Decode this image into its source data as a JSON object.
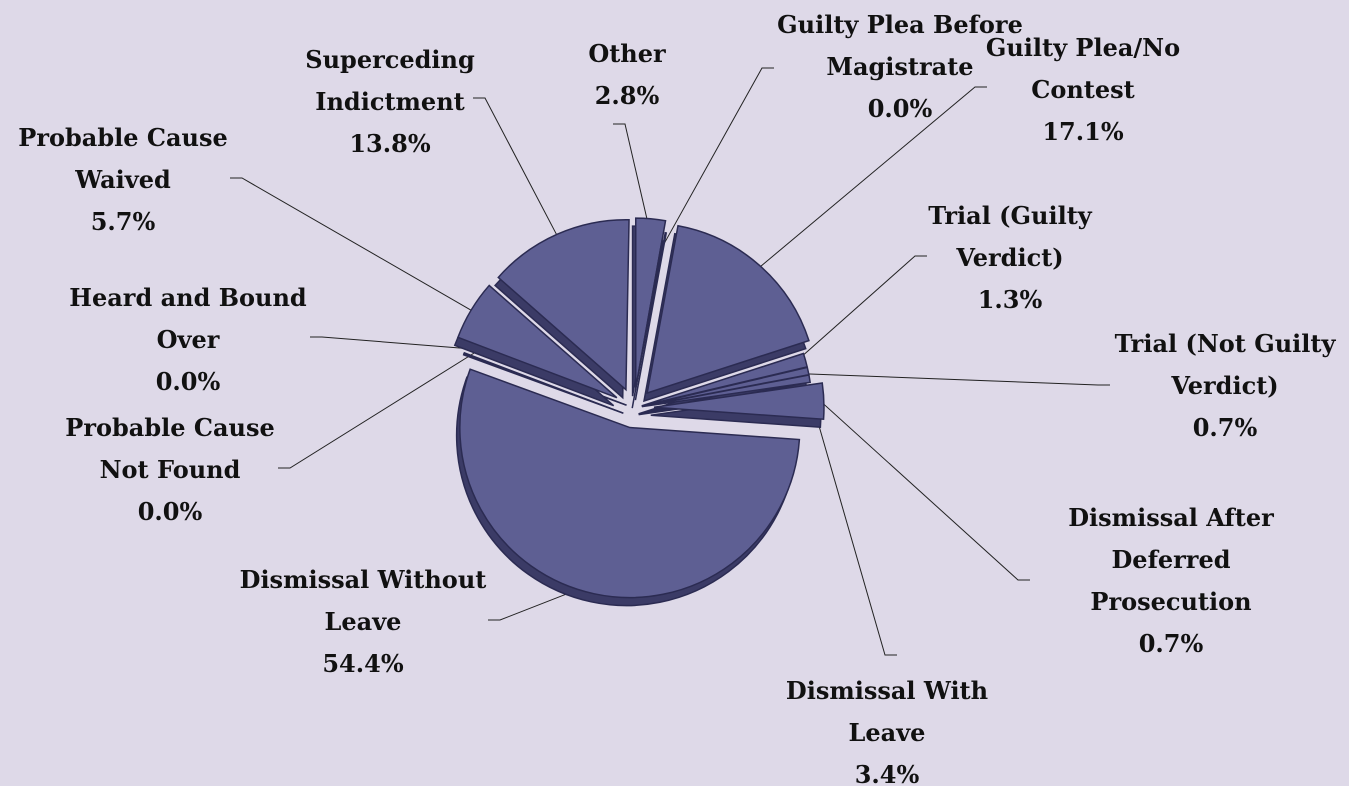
{
  "chart_data": {
    "type": "pie",
    "style": "3d-exploded",
    "colors": {
      "background": "#ded9e8",
      "slice": "#5e5f93",
      "slice_edge": "#2b2b52",
      "slice_side": "#3b3b66",
      "leader": "#222222"
    },
    "slices": [
      {
        "label_lines": [
          "Other"
        ],
        "value": 2.8,
        "value_label": "2.8%"
      },
      {
        "label_lines": [
          "Guilty Plea Before",
          "Magistrate"
        ],
        "value": 0.0,
        "value_label": "0.0%"
      },
      {
        "label_lines": [
          "Guilty Plea/No",
          "Contest"
        ],
        "value": 17.1,
        "value_label": "17.1%"
      },
      {
        "label_lines": [
          "Trial (Guilty",
          "Verdict)"
        ],
        "value": 1.3,
        "value_label": "1.3%"
      },
      {
        "label_lines": [
          "Trial (Not Guilty",
          "Verdict)"
        ],
        "value": 0.7,
        "value_label": "0.7%"
      },
      {
        "label_lines": [
          "Dismissal After",
          "Deferred",
          "Prosecution"
        ],
        "value": 0.7,
        "value_label": "0.7%"
      },
      {
        "label_lines": [
          "Dismissal With",
          "Leave"
        ],
        "value": 3.4,
        "value_label": "3.4%"
      },
      {
        "label_lines": [
          "Dismissal Without",
          "Leave"
        ],
        "value": 54.4,
        "value_label": "54.4%"
      },
      {
        "label_lines": [
          "Probable Cause",
          "Not Found"
        ],
        "value": 0.0,
        "value_label": "0.0%"
      },
      {
        "label_lines": [
          "Heard and Bound",
          "Over"
        ],
        "value": 0.0,
        "value_label": "0.0%"
      },
      {
        "label_lines": [
          "Probable Cause",
          "Waived"
        ],
        "value": 5.7,
        "value_label": "5.7%"
      },
      {
        "label_lines": [
          "Superceding",
          "Indictment"
        ],
        "value": 13.8,
        "value_label": "13.8%"
      }
    ]
  }
}
